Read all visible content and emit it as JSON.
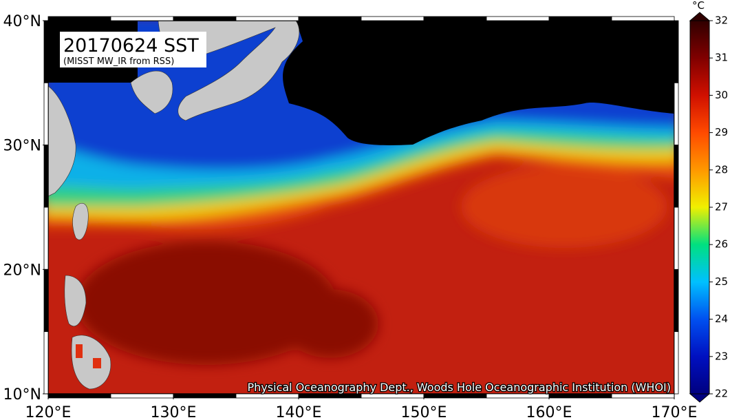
{
  "map": {
    "title": "20170624 SST",
    "subtitle": "(MISST MW_IR from RSS)",
    "credit": "Physical Oceanography Dept., Woods Hole Oceanographic Institution (WHOI)",
    "lonlim": [
      120,
      170
    ],
    "latlim": [
      10,
      40
    ],
    "lon_ticks": [
      {
        "value": 120,
        "label": "120°E"
      },
      {
        "value": 130,
        "label": "130°E"
      },
      {
        "value": 140,
        "label": "140°E"
      },
      {
        "value": 150,
        "label": "150°E"
      },
      {
        "value": 160,
        "label": "160°E"
      },
      {
        "value": 170,
        "label": "170°E"
      }
    ],
    "lat_ticks": [
      {
        "value": 10,
        "label": "10°N"
      },
      {
        "value": 20,
        "label": "20°N"
      },
      {
        "value": 30,
        "label": "30°N"
      },
      {
        "value": 40,
        "label": "40°N"
      }
    ]
  },
  "colorbar": {
    "unit": "°C",
    "range": [
      22,
      32
    ],
    "ticks": [
      22,
      23,
      24,
      25,
      26,
      27,
      28,
      29,
      30,
      31,
      32
    ]
  }
}
